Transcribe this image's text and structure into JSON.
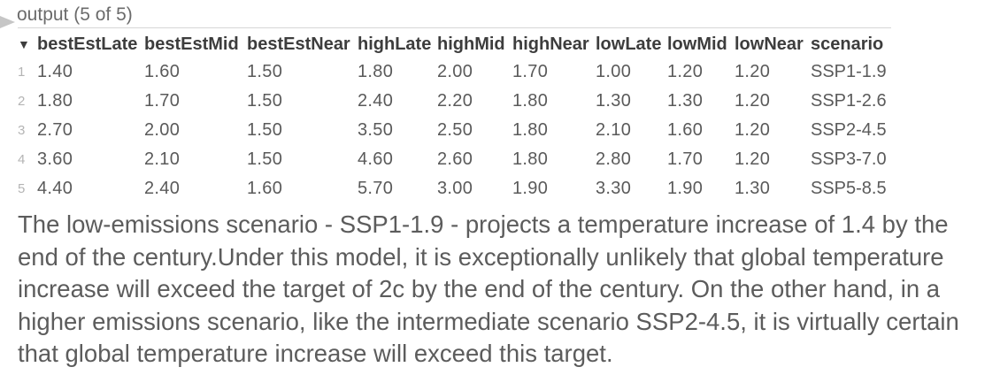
{
  "output": {
    "label": "output (5 of 5)"
  },
  "table": {
    "columns": [
      {
        "key": "bestEstLate",
        "label": "bestEstLate"
      },
      {
        "key": "bestEstMid",
        "label": "bestEstMid"
      },
      {
        "key": "bestEstNear",
        "label": "bestEstNear"
      },
      {
        "key": "highLate",
        "label": "highLate"
      },
      {
        "key": "highMid",
        "label": "highMid"
      },
      {
        "key": "highNear",
        "label": "highNear"
      },
      {
        "key": "lowLate",
        "label": "lowLate"
      },
      {
        "key": "lowMid",
        "label": "lowMid"
      },
      {
        "key": "lowNear",
        "label": "lowNear"
      },
      {
        "key": "scenario",
        "label": "scenario"
      }
    ],
    "rows": [
      {
        "index": "1",
        "bestEstLate": "1.40",
        "bestEstMid": "1.60",
        "bestEstNear": "1.50",
        "highLate": "1.80",
        "highMid": "2.00",
        "highNear": "1.70",
        "lowLate": "1.00",
        "lowMid": "1.20",
        "lowNear": "1.20",
        "scenario": "SSP1-1.9"
      },
      {
        "index": "2",
        "bestEstLate": "1.80",
        "bestEstMid": "1.70",
        "bestEstNear": "1.50",
        "highLate": "2.40",
        "highMid": "2.20",
        "highNear": "1.80",
        "lowLate": "1.30",
        "lowMid": "1.30",
        "lowNear": "1.20",
        "scenario": "SSP1-2.6"
      },
      {
        "index": "3",
        "bestEstLate": "2.70",
        "bestEstMid": "2.00",
        "bestEstNear": "1.50",
        "highLate": "3.50",
        "highMid": "2.50",
        "highNear": "1.80",
        "lowLate": "2.10",
        "lowMid": "1.60",
        "lowNear": "1.20",
        "scenario": "SSP2-4.5"
      },
      {
        "index": "4",
        "bestEstLate": "3.60",
        "bestEstMid": "2.10",
        "bestEstNear": "1.50",
        "highLate": "4.60",
        "highMid": "2.60",
        "highNear": "1.80",
        "lowLate": "2.80",
        "lowMid": "1.70",
        "lowNear": "1.20",
        "scenario": "SSP3-7.0"
      },
      {
        "index": "5",
        "bestEstLate": "4.40",
        "bestEstMid": "2.40",
        "bestEstNear": "1.60",
        "highLate": "5.70",
        "highMid": "3.00",
        "highNear": "1.90",
        "lowLate": "3.30",
        "lowMid": "1.90",
        "lowNear": "1.30",
        "scenario": "SSP5-8.5"
      }
    ]
  },
  "paragraph": "The low-emissions scenario - SSP1-1.9 - projects a temperature increase of 1.4 by the end of the century.Under this model, it is exceptionally unlikely that global temperature increase will exceed the target of 2c by the end of the century. On the other hand, in a higher emissions scenario, like the intermediate scenario SSP2-4.5, it is virtually certain that global temperature increase will exceed this target."
}
